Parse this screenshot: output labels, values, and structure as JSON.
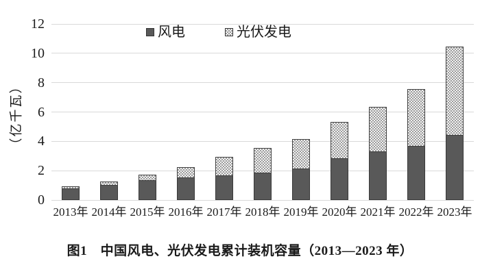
{
  "figure": {
    "caption": "图1　中国风电、光伏发电累计装机容量（2013—2023 年）"
  },
  "chart_data": {
    "type": "bar",
    "stacked": true,
    "title": "",
    "xlabel": "",
    "ylabel": "（亿千瓦）",
    "ylim": [
      0,
      12
    ],
    "yticks": [
      0,
      2,
      4,
      6,
      8,
      10,
      12
    ],
    "grid": true,
    "legend_position": "top-center-inside",
    "categories": [
      "2013年",
      "2014年",
      "2015年",
      "2016年",
      "2017年",
      "2018年",
      "2019年",
      "2020年",
      "2021年",
      "2022年",
      "2023年"
    ],
    "series": [
      {
        "key": "wind",
        "name": "风电",
        "color": "#595959",
        "pattern": "solid",
        "values": [
          0.77,
          0.96,
          1.31,
          1.49,
          1.64,
          1.84,
          2.1,
          2.81,
          3.28,
          3.65,
          4.41
        ]
      },
      {
        "key": "solar",
        "name": "光伏发电",
        "color": "#9c9c9c",
        "pattern": "checker",
        "values": [
          0.19,
          0.28,
          0.43,
          0.77,
          1.3,
          1.74,
          2.04,
          2.53,
          3.06,
          3.93,
          6.09
        ]
      }
    ],
    "totals": [
      0.96,
      1.24,
      1.74,
      2.26,
      2.94,
      3.58,
      4.14,
      5.34,
      6.34,
      7.58,
      10.5
    ]
  },
  "colors": {
    "wind_bar": "#595959",
    "bar_border": "#3f3f3f",
    "checker_dark": "#9c9c9c",
    "checker_light": "#f2f2f2",
    "gridline": "#d9d9d9",
    "text": "#1a1a1a",
    "background": "#ffffff"
  }
}
